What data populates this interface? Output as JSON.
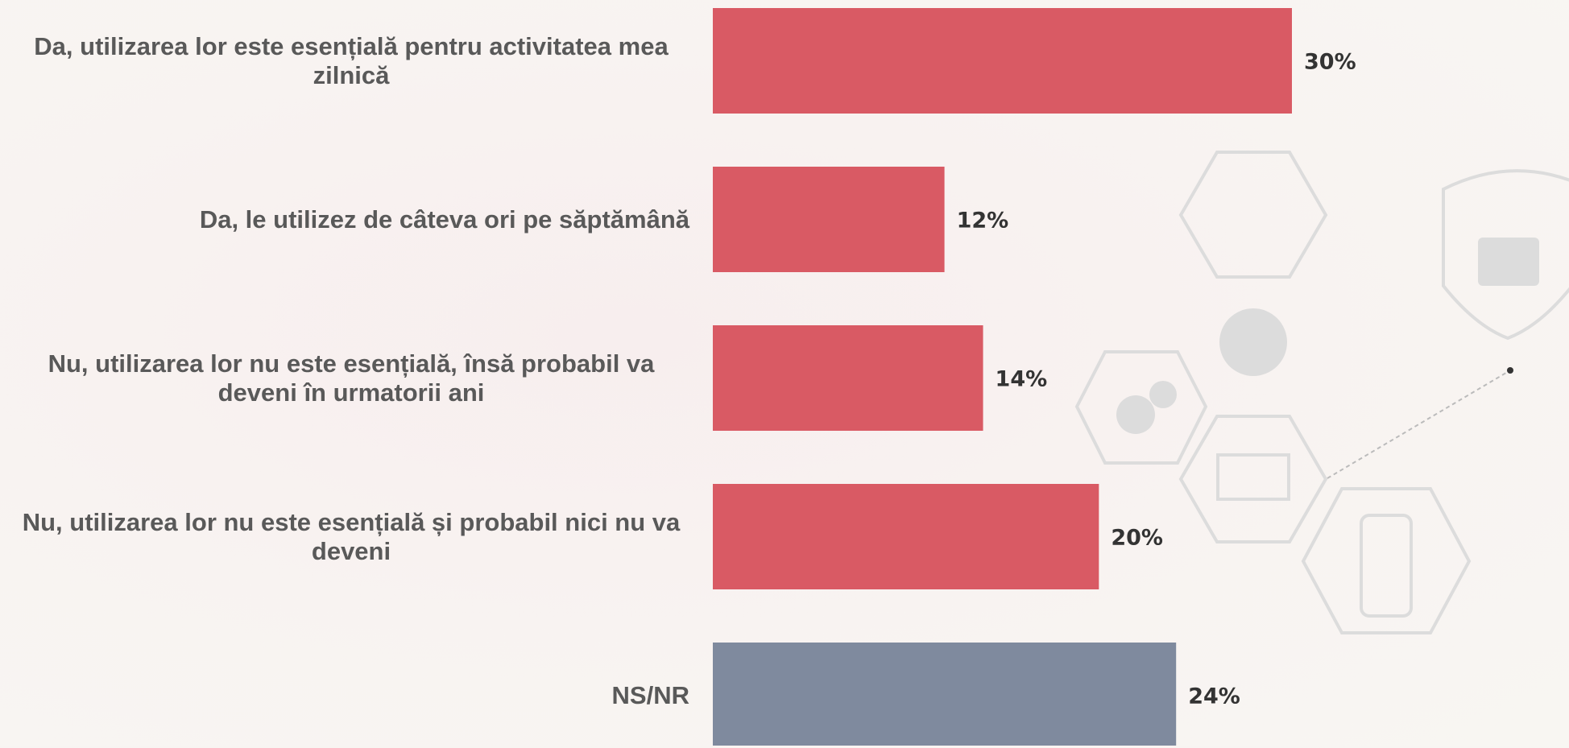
{
  "chart_data": {
    "type": "bar",
    "orientation": "horizontal",
    "categories": [
      "Da, utilizarea lor este esențială pentru activitatea mea zilnică",
      "Da, le utilizez de câteva ori pe săptămână",
      "Nu, utilizarea lor nu este esențială, însă probabil va deveni în urmatorii ani",
      "Nu, utilizarea lor nu este esențială și probabil nici nu va deveni",
      "NS/NR"
    ],
    "values": [
      30,
      12,
      14,
      20,
      24
    ],
    "value_labels": [
      "30%",
      "12%",
      "14%",
      "20%",
      "24%"
    ],
    "colors": [
      "#d95a64",
      "#d95a64",
      "#d95a64",
      "#d95a64",
      "#7f8a9e"
    ]
  }
}
